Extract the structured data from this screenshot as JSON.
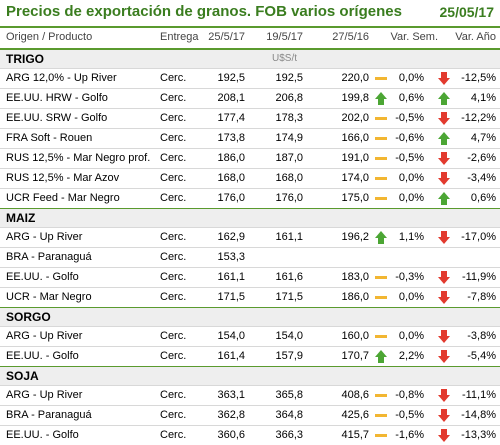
{
  "header": {
    "title": "Precios de exportación de granos. FOB varios orígenes",
    "date": "25/05/17"
  },
  "columns": {
    "origin": "Origen / Producto",
    "entrega": "Entrega",
    "d1": "25/5/17",
    "d2": "19/5/17",
    "d3": "27/5/16",
    "var_sem": "Var. Sem.",
    "var_anio": "Var. Año"
  },
  "colors": {
    "accent": "#3a7d1f",
    "up": "#4ca634",
    "down": "#e23a2e",
    "flat": "#f2b632"
  },
  "sections": [
    {
      "name": "TRIGO",
      "unit": "U$S/t",
      "rows": [
        {
          "origin": "ARG 12,0% - Up River",
          "entrega": "Cerc.",
          "d1": "192,5",
          "d2": "192,5",
          "d3": "220,0",
          "trend_icon": "dash-icon",
          "var_sem": "0,0%",
          "week_icon": "down-arrow-icon",
          "var_anio": "-12,5%"
        },
        {
          "origin": "EE.UU. HRW - Golfo",
          "entrega": "Cerc.",
          "d1": "208,1",
          "d2": "206,8",
          "d3": "199,8",
          "trend_icon": "up-arrow-icon",
          "var_sem": "0,6%",
          "week_icon": "up-arrow-icon",
          "var_anio": "4,1%"
        },
        {
          "origin": "EE.UU. SRW - Golfo",
          "entrega": "Cerc.",
          "d1": "177,4",
          "d2": "178,3",
          "d3": "202,0",
          "trend_icon": "dash-icon",
          "var_sem": "-0,5%",
          "week_icon": "down-arrow-icon",
          "var_anio": "-12,2%"
        },
        {
          "origin": "FRA Soft - Rouen",
          "entrega": "Cerc.",
          "d1": "173,8",
          "d2": "174,9",
          "d3": "166,0",
          "trend_icon": "dash-icon",
          "var_sem": "-0,6%",
          "week_icon": "up-arrow-icon",
          "var_anio": "4,7%"
        },
        {
          "origin": "RUS 12,5% - Mar Negro prof.",
          "entrega": "Cerc.",
          "d1": "186,0",
          "d2": "187,0",
          "d3": "191,0",
          "trend_icon": "dash-icon",
          "var_sem": "-0,5%",
          "week_icon": "down-arrow-icon",
          "var_anio": "-2,6%"
        },
        {
          "origin": "RUS 12,5% - Mar Azov",
          "entrega": "Cerc.",
          "d1": "168,0",
          "d2": "168,0",
          "d3": "174,0",
          "trend_icon": "dash-icon",
          "var_sem": "0,0%",
          "week_icon": "down-arrow-icon",
          "var_anio": "-3,4%"
        },
        {
          "origin": "UCR Feed - Mar Negro",
          "entrega": "Cerc.",
          "d1": "176,0",
          "d2": "176,0",
          "d3": "175,0",
          "trend_icon": "dash-icon",
          "var_sem": "0,0%",
          "week_icon": "up-arrow-icon",
          "var_anio": "0,6%"
        }
      ]
    },
    {
      "name": "MAIZ",
      "unit": "",
      "rows": [
        {
          "origin": "ARG - Up River",
          "entrega": "Cerc.",
          "d1": "162,9",
          "d2": "161,1",
          "d3": "196,2",
          "trend_icon": "up-arrow-icon",
          "var_sem": "1,1%",
          "week_icon": "down-arrow-icon",
          "var_anio": "-17,0%"
        },
        {
          "origin": "BRA - Paranaguá",
          "entrega": "Cerc.",
          "d1": "153,3",
          "d2": "",
          "d3": "",
          "trend_icon": "",
          "var_sem": "",
          "week_icon": "",
          "var_anio": ""
        },
        {
          "origin": "EE.UU. - Golfo",
          "entrega": "Cerc.",
          "d1": "161,1",
          "d2": "161,6",
          "d3": "183,0",
          "trend_icon": "dash-icon",
          "var_sem": "-0,3%",
          "week_icon": "down-arrow-icon",
          "var_anio": "-11,9%"
        },
        {
          "origin": "UCR - Mar Negro",
          "entrega": "Cerc.",
          "d1": "171,5",
          "d2": "171,5",
          "d3": "186,0",
          "trend_icon": "dash-icon",
          "var_sem": "0,0%",
          "week_icon": "down-arrow-icon",
          "var_anio": "-7,8%"
        }
      ]
    },
    {
      "name": "SORGO",
      "unit": "",
      "rows": [
        {
          "origin": "ARG - Up River",
          "entrega": "Cerc.",
          "d1": "154,0",
          "d2": "154,0",
          "d3": "160,0",
          "trend_icon": "dash-icon",
          "var_sem": "0,0%",
          "week_icon": "down-arrow-icon",
          "var_anio": "-3,8%"
        },
        {
          "origin": "EE.UU. - Golfo",
          "entrega": "Cerc.",
          "d1": "161,4",
          "d2": "157,9",
          "d3": "170,7",
          "trend_icon": "up-arrow-icon",
          "var_sem": "2,2%",
          "week_icon": "down-arrow-icon",
          "var_anio": "-5,4%"
        }
      ]
    },
    {
      "name": "SOJA",
      "unit": "",
      "rows": [
        {
          "origin": "ARG - Up River",
          "entrega": "Cerc.",
          "d1": "363,1",
          "d2": "365,8",
          "d3": "408,6",
          "trend_icon": "dash-icon",
          "var_sem": "-0,8%",
          "week_icon": "down-arrow-icon",
          "var_anio": "-11,1%"
        },
        {
          "origin": "BRA - Paranaguá",
          "entrega": "Cerc.",
          "d1": "362,8",
          "d2": "364,8",
          "d3": "425,6",
          "trend_icon": "dash-icon",
          "var_sem": "-0,5%",
          "week_icon": "down-arrow-icon",
          "var_anio": "-14,8%"
        },
        {
          "origin": "EE.UU. - Golfo",
          "entrega": "Cerc.",
          "d1": "360,6",
          "d2": "366,3",
          "d3": "415,7",
          "trend_icon": "dash-icon",
          "var_sem": "-1,6%",
          "week_icon": "down-arrow-icon",
          "var_anio": "-13,3%"
        }
      ]
    }
  ]
}
